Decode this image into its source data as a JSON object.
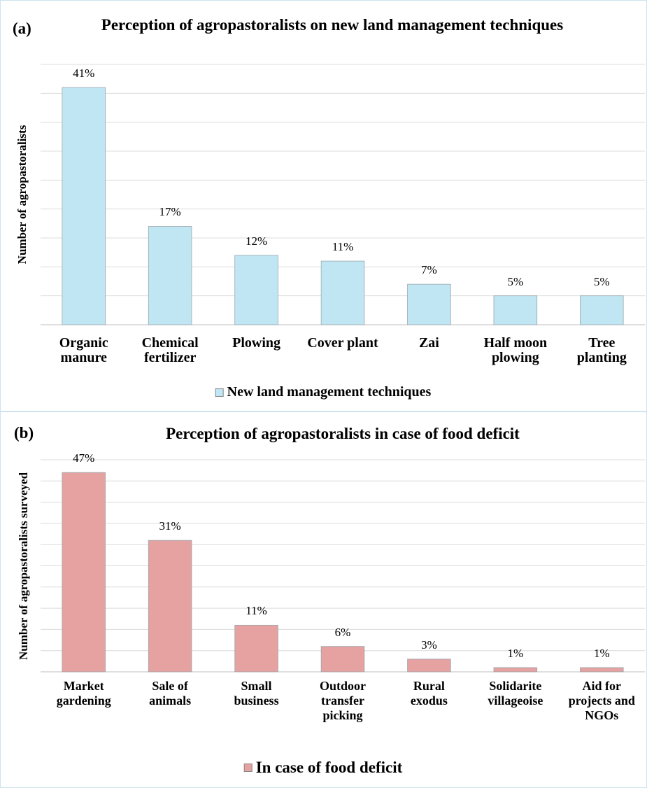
{
  "chart_data": [
    {
      "type": "bar",
      "panel_label": "(a)",
      "title": "Perception of agropastoralists on new land management techniques",
      "y_label": "Number of agropastoralists",
      "categories": [
        "Organic manure",
        "Chemical fertilizer",
        "Plowing",
        "Cover plant",
        "Zai",
        "Half moon plowing",
        "Tree planting"
      ],
      "series": [
        {
          "name": "New land management techniques",
          "color": "#bfe6f2",
          "values": [
            41,
            17,
            12,
            11,
            7,
            5,
            5
          ],
          "value_labels": [
            "41%",
            "17%",
            "12%",
            "11%",
            "7%",
            "5%",
            "5%"
          ]
        }
      ],
      "ylim": [
        0,
        45
      ],
      "yticks": [
        0,
        5,
        10,
        15,
        20,
        25,
        30,
        35,
        40,
        45
      ],
      "grid": true,
      "legend": "bottom"
    },
    {
      "type": "bar",
      "panel_label": "(b)",
      "title": "Perception of agropastoralists in case of food deficit",
      "y_label": "Number of agropastoralists surveyed",
      "categories": [
        "Market gardening",
        "Sale of animals",
        "Small business",
        "Outdoor transfer picking",
        "Rural exodus",
        "Solidarite villageoise",
        "Aid for projects and NGOs"
      ],
      "series": [
        {
          "name": "In case of food deficit",
          "color": "#e6a1a1",
          "values": [
            47,
            31,
            11,
            6,
            3,
            1,
            1
          ],
          "value_labels": [
            "47%",
            "31%",
            "11%",
            "6%",
            "3%",
            "1%",
            "1%"
          ]
        }
      ],
      "ylim": [
        0,
        50
      ],
      "yticks": [
        0,
        5,
        10,
        15,
        20,
        25,
        30,
        35,
        40,
        45,
        50
      ],
      "grid": true,
      "legend": "bottom"
    }
  ]
}
